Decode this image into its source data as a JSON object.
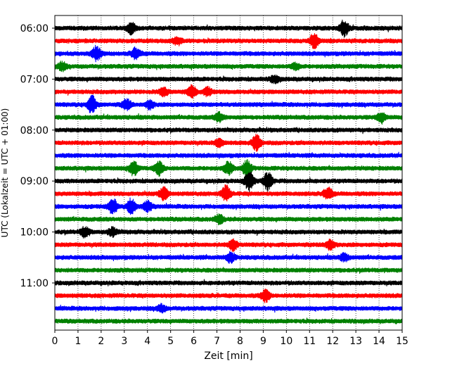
{
  "chart_data": {
    "type": "line",
    "title": "",
    "xlabel": "Zeit  [min]",
    "ylabel": "UTC (Lokalzeit = UTC + 01:00)",
    "xlim": [
      0,
      15
    ],
    "x_ticks": [
      "0",
      "1",
      "2",
      "3",
      "4",
      "5",
      "6",
      "7",
      "8",
      "9",
      "10",
      "11",
      "12",
      "13",
      "14",
      "15"
    ],
    "y_ticks": [
      "06:00",
      "07:00",
      "08:00",
      "09:00",
      "10:00",
      "11:00"
    ],
    "grid": "x",
    "trace_colors": [
      "#000000",
      "#ff0000",
      "#0000ff",
      "#008000"
    ],
    "start_hour": "06:00",
    "minutes_per_trace": 15,
    "trace_count": 24,
    "events": [
      {
        "trace": 0,
        "x": 3.3,
        "amp": 1.4
      },
      {
        "trace": 0,
        "x": 12.5,
        "amp": 2.0
      },
      {
        "trace": 1,
        "x": 5.3,
        "amp": 1.0
      },
      {
        "trace": 1,
        "x": 11.2,
        "amp": 1.8
      },
      {
        "trace": 2,
        "x": 1.8,
        "amp": 1.8
      },
      {
        "trace": 2,
        "x": 3.5,
        "amp": 1.4
      },
      {
        "trace": 3,
        "x": 0.3,
        "amp": 1.0
      },
      {
        "trace": 3,
        "x": 10.4,
        "amp": 0.8
      },
      {
        "trace": 4,
        "x": 9.5,
        "amp": 0.9
      },
      {
        "trace": 5,
        "x": 4.7,
        "amp": 1.1
      },
      {
        "trace": 5,
        "x": 5.9,
        "amp": 1.6
      },
      {
        "trace": 5,
        "x": 6.6,
        "amp": 1.0
      },
      {
        "trace": 6,
        "x": 1.6,
        "amp": 2.2
      },
      {
        "trace": 6,
        "x": 3.1,
        "amp": 1.3
      },
      {
        "trace": 6,
        "x": 4.1,
        "amp": 1.1
      },
      {
        "trace": 7,
        "x": 7.1,
        "amp": 1.2
      },
      {
        "trace": 7,
        "x": 14.1,
        "amp": 1.2
      },
      {
        "trace": 9,
        "x": 8.7,
        "amp": 2.0
      },
      {
        "trace": 9,
        "x": 7.1,
        "amp": 0.9
      },
      {
        "trace": 11,
        "x": 3.4,
        "amp": 1.9
      },
      {
        "trace": 11,
        "x": 4.5,
        "amp": 1.7
      },
      {
        "trace": 11,
        "x": 7.5,
        "amp": 1.6
      },
      {
        "trace": 11,
        "x": 8.3,
        "amp": 2.0
      },
      {
        "trace": 12,
        "x": 8.4,
        "amp": 2.5
      },
      {
        "trace": 12,
        "x": 9.2,
        "amp": 2.3
      },
      {
        "trace": 13,
        "x": 4.7,
        "amp": 1.6
      },
      {
        "trace": 13,
        "x": 7.4,
        "amp": 2.0
      },
      {
        "trace": 13,
        "x": 11.8,
        "amp": 1.5
      },
      {
        "trace": 14,
        "x": 2.5,
        "amp": 2.0
      },
      {
        "trace": 14,
        "x": 3.3,
        "amp": 1.9
      },
      {
        "trace": 14,
        "x": 4.0,
        "amp": 1.3
      },
      {
        "trace": 15,
        "x": 7.1,
        "amp": 1.1
      },
      {
        "trace": 16,
        "x": 1.3,
        "amp": 1.3
      },
      {
        "trace": 16,
        "x": 2.5,
        "amp": 1.0
      },
      {
        "trace": 17,
        "x": 7.7,
        "amp": 1.4
      },
      {
        "trace": 17,
        "x": 11.9,
        "amp": 1.4
      },
      {
        "trace": 18,
        "x": 7.6,
        "amp": 1.3
      },
      {
        "trace": 18,
        "x": 12.5,
        "amp": 0.9
      },
      {
        "trace": 21,
        "x": 9.1,
        "amp": 1.5
      },
      {
        "trace": 22,
        "x": 4.6,
        "amp": 0.9
      }
    ]
  }
}
